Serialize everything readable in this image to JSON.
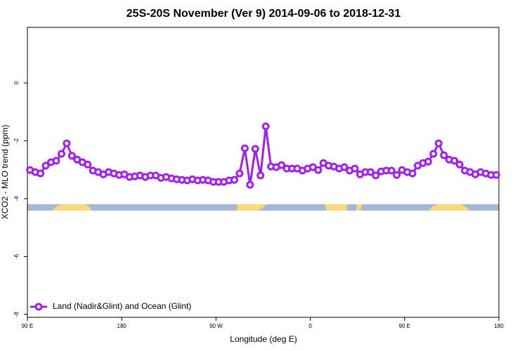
{
  "chart_data": {
    "type": "line",
    "title": "25S-20S November (Ver 9)   2014-09-06 to 2018-12-31",
    "xlabel": "Longitude (deg E)",
    "ylabel": "XCO2 - MLO trend (ppm)",
    "xlim": [
      90,
      540
    ],
    "ylim": [
      -8.1,
      1.92
    ],
    "xticks": [
      {
        "value": 90,
        "label": "90 E"
      },
      180,
      {
        "value": 270,
        "label": "90 W"
      },
      {
        "value": 360,
        "label": "0"
      },
      {
        "value": 450,
        "label": "90 E"
      },
      {
        "value": 540,
        "label": "180"
      }
    ],
    "yticks": [
      -8,
      -6,
      -4,
      -2,
      0
    ],
    "legend": "lower left",
    "x": [
      92.5,
      97.5,
      102.5,
      107.5,
      112.5,
      117.5,
      122.5,
      127.5,
      132.5,
      137.5,
      142.5,
      147.5,
      152.5,
      157.5,
      162.5,
      167.5,
      172.5,
      177.5,
      182.5,
      187.5,
      192.5,
      197.5,
      202.5,
      207.5,
      212.5,
      217.5,
      222.5,
      227.5,
      232.5,
      237.5,
      242.5,
      247.5,
      252.5,
      257.5,
      262.5,
      267.5,
      272.5,
      277.5,
      282.5,
      287.5,
      292.5,
      297.5,
      302.5,
      307.5,
      312.5,
      317.5,
      322.5,
      327.5,
      332.5,
      337.5,
      342.5,
      347.5,
      352.5,
      357.5,
      362.5,
      367.5,
      372.5,
      377.5,
      382.5,
      387.5,
      392.5,
      397.5,
      402.5,
      407.5,
      412.5,
      417.5,
      422.5,
      427.5,
      432.5,
      437.5,
      442.5,
      447.5,
      452.5,
      457.5,
      462.5,
      467.5,
      472.5,
      477.5,
      482.5,
      487.5,
      492.5,
      497.5,
      502.5,
      507.5,
      512.5,
      517.5,
      522.5,
      527.5,
      532.5,
      537.5
    ],
    "series": [
      {
        "name": "Land (Nadir&Glint) and Ocean (Glint)",
        "color": "#a020f0",
        "values": [
          -3.01,
          -3.08,
          -3.13,
          -2.86,
          -2.74,
          -2.69,
          -2.45,
          -2.09,
          -2.52,
          -2.65,
          -2.74,
          -2.82,
          -3.03,
          -3.08,
          -3.16,
          -3.08,
          -3.13,
          -3.18,
          -3.16,
          -3.25,
          -3.23,
          -3.2,
          -3.25,
          -3.2,
          -3.2,
          -3.28,
          -3.25,
          -3.3,
          -3.33,
          -3.35,
          -3.37,
          -3.33,
          -3.37,
          -3.35,
          -3.37,
          -3.42,
          -3.42,
          -3.42,
          -3.37,
          -3.35,
          -3.13,
          -2.26,
          -3.52,
          -2.28,
          -3.2,
          -1.5,
          -2.89,
          -2.91,
          -2.84,
          -2.96,
          -2.96,
          -2.96,
          -3.03,
          -2.96,
          -2.91,
          -3.01,
          -2.77,
          -2.86,
          -2.89,
          -2.96,
          -2.91,
          -3.03,
          -2.96,
          -3.16,
          -3.08,
          -3.08,
          -3.2,
          -3.06,
          -3.03,
          -3.03,
          -3.18,
          -3.01,
          -3.08,
          -3.13,
          -2.86,
          -2.77,
          -2.72,
          -2.45,
          -2.09,
          -2.5,
          -2.65,
          -2.69,
          -2.82,
          -3.03,
          -3.08,
          -3.16,
          -3.08,
          -3.13,
          -3.18,
          -3.18
        ]
      }
    ]
  }
}
